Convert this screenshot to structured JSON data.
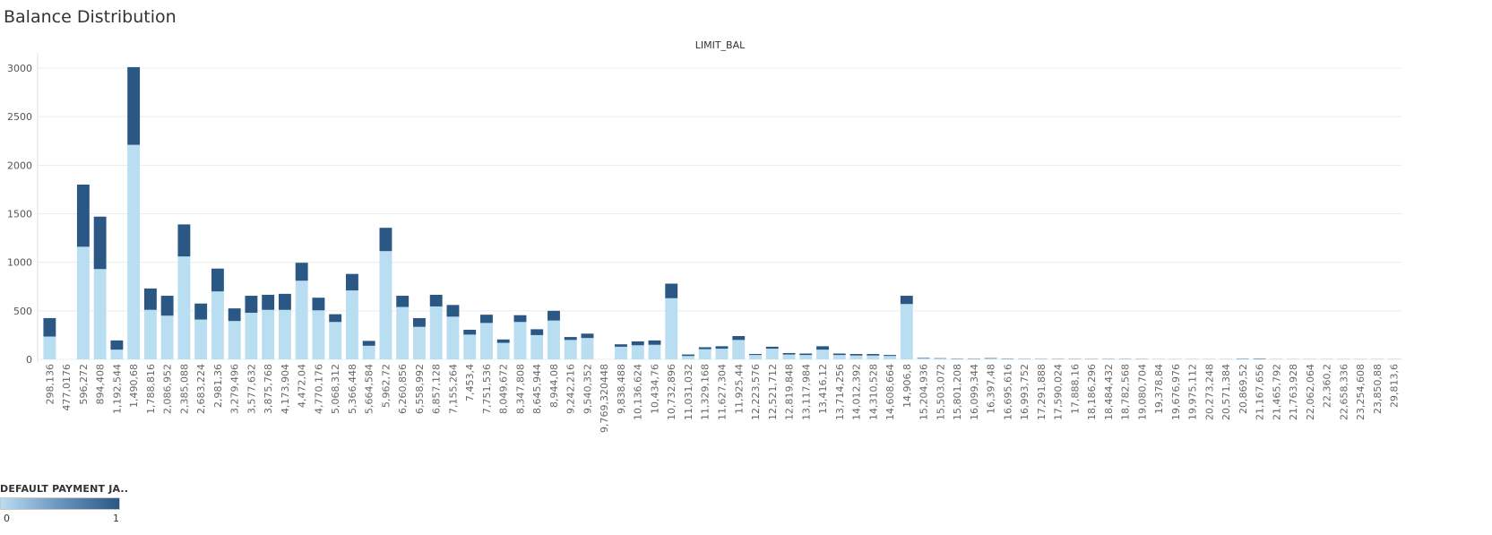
{
  "chart_data": {
    "type": "bar",
    "stacked": true,
    "title": "Balance Distribution",
    "column_header": "LIMIT_BAL",
    "xlabel": "",
    "ylabel": "",
    "ylim": [
      0,
      3100
    ],
    "yticks": [
      0,
      500,
      1000,
      1500,
      2000,
      2500,
      3000
    ],
    "grid": true,
    "legend": {
      "title": "DEFAULT PAYMENT JA..",
      "type": "continuous-color",
      "min_label": "0",
      "max_label": "1",
      "colors": [
        "#b9ddf1",
        "#2a5783"
      ],
      "placement": "bottom-left"
    },
    "categories": [
      "298,136",
      "477,0176",
      "596,272",
      "894,408",
      "1,192,544",
      "1,490,68",
      "1,788,816",
      "2,086,952",
      "2,385,088",
      "2,683,224",
      "2,981,36",
      "3,279,496",
      "3,577,632",
      "3,875,768",
      "4,173,904",
      "4,472,04",
      "4,770,176",
      "5,068,312",
      "5,366,448",
      "5,664,584",
      "5,962,72",
      "6,260,856",
      "6,558,992",
      "6,857,128",
      "7,155,264",
      "7,453,4",
      "7,751,536",
      "8,049,672",
      "8,347,808",
      "8,645,944",
      "8,944,08",
      "9,242,216",
      "9,540,352",
      "9,769,320448",
      "9,838,488",
      "10,136,624",
      "10,434,76",
      "10,732,896",
      "11,031,032",
      "11,329,168",
      "11,627,304",
      "11,925,44",
      "12,223,576",
      "12,521,712",
      "12,819,848",
      "13,117,984",
      "13,416,12",
      "13,714,256",
      "14,012,392",
      "14,310,528",
      "14,608,664",
      "14,906,8",
      "15,204,936",
      "15,503,072",
      "15,801,208",
      "16,099,344",
      "16,397,48",
      "16,695,616",
      "16,993,752",
      "17,291,888",
      "17,590,024",
      "17,888,16",
      "18,186,296",
      "18,484,432",
      "18,782,568",
      "19,080,704",
      "19,378,84",
      "19,676,976",
      "19,975,112",
      "20,273,248",
      "20,571,384",
      "20,869,52",
      "21,167,656",
      "21,465,792",
      "21,763,928",
      "22,062,064",
      "22,360,2",
      "22,658,336",
      "23,254,608",
      "23,850,88",
      "29,813,6"
    ],
    "series": [
      {
        "name": "0",
        "color": "#b9ddf1",
        "values": [
          235,
          0,
          1160,
          930,
          100,
          2210,
          510,
          450,
          1060,
          410,
          700,
          395,
          480,
          510,
          510,
          810,
          505,
          385,
          710,
          140,
          1115,
          540,
          335,
          545,
          440,
          255,
          375,
          170,
          385,
          250,
          400,
          200,
          220,
          0,
          130,
          145,
          150,
          630,
          35,
          105,
          110,
          200,
          45,
          110,
          50,
          45,
          100,
          45,
          40,
          40,
          35,
          570,
          10,
          8,
          5,
          4,
          8,
          5,
          4,
          4,
          4,
          4,
          4,
          4,
          4,
          3,
          2,
          2,
          2,
          2,
          2,
          5,
          5,
          2,
          2,
          2,
          2,
          2,
          2,
          2,
          2
        ]
      },
      {
        "name": "1",
        "color": "#2a5783",
        "values": [
          190,
          0,
          640,
          540,
          95,
          800,
          220,
          205,
          330,
          165,
          235,
          130,
          175,
          155,
          165,
          185,
          130,
          80,
          170,
          50,
          240,
          115,
          90,
          120,
          120,
          50,
          85,
          35,
          70,
          60,
          100,
          30,
          45,
          0,
          25,
          40,
          45,
          150,
          15,
          20,
          25,
          40,
          10,
          20,
          15,
          15,
          35,
          15,
          15,
          15,
          10,
          85,
          5,
          4,
          3,
          3,
          5,
          3,
          2,
          2,
          2,
          2,
          2,
          2,
          2,
          2,
          1,
          1,
          1,
          1,
          1,
          3,
          4,
          1,
          1,
          1,
          1,
          1,
          1,
          1,
          1
        ]
      }
    ]
  }
}
